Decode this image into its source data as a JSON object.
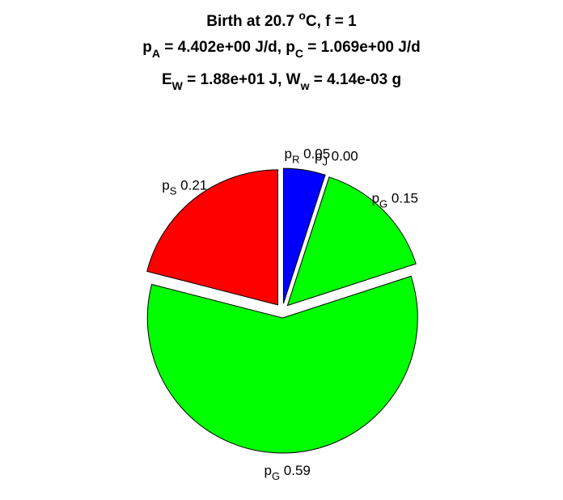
{
  "chart_data": {
    "type": "pie",
    "title_lines": [
      [
        {
          "t": "Birth at 20.7 "
        },
        {
          "t": "o",
          "sup": true
        },
        {
          "t": "C, f = 1"
        }
      ],
      [
        {
          "t": "p"
        },
        {
          "t": "A",
          "sub": true
        },
        {
          "t": " = 4.402e+00 J/d, p"
        },
        {
          "t": "C",
          "sub": true
        },
        {
          "t": " = 1.069e+00 J/d"
        }
      ],
      [
        {
          "t": "E"
        },
        {
          "t": "W",
          "sub": true
        },
        {
          "t": " = 1.88e+01 J, W"
        },
        {
          "t": "w",
          "sub": true
        },
        {
          "t": " = 4.14e-03 g"
        }
      ]
    ],
    "slices": [
      {
        "base": "p",
        "sub": "R",
        "value": 0.05,
        "label_value": "0.05",
        "color": "#0000ff"
      },
      {
        "base": "p",
        "sub": "J",
        "value": 0.0,
        "label_value": "0.00",
        "color": "#ffff00"
      },
      {
        "base": "p",
        "sub": "G",
        "value": 0.15,
        "label_value": "0.15",
        "color": "#00ff00"
      },
      {
        "base": "p",
        "sub": "G",
        "value": 0.59,
        "label_value": "0.59",
        "color": "#00ff00"
      },
      {
        "base": "p",
        "sub": "S",
        "value": 0.21,
        "label_value": "0.21",
        "color": "#ff0000"
      }
    ],
    "start_direction": "12 o'clock",
    "order": "clockwise",
    "exploded": true
  }
}
